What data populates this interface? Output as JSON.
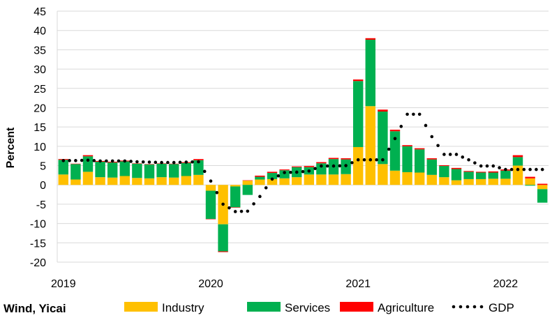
{
  "source_label": "Wind, Yicai",
  "colors": {
    "industry": "#FFC000",
    "services": "#00B050",
    "agriculture": "#FF0000",
    "gdp": "#000000",
    "grid": "#D9D9D9"
  },
  "chart_data": {
    "type": "bar",
    "stacked": true,
    "title": "",
    "xlabel": "",
    "ylabel": "Percent",
    "ylim": [
      -20,
      45
    ],
    "yticks": [
      45,
      40,
      35,
      30,
      25,
      20,
      15,
      10,
      5,
      0,
      -5,
      -10,
      -15,
      -20
    ],
    "x_tick_labels": [
      "2019",
      "2020",
      "2021",
      "2022"
    ],
    "grid": true,
    "legend_position": "bottom",
    "categories": [
      "2019-01",
      "2019-02",
      "2019-03",
      "2019-04",
      "2019-05",
      "2019-06",
      "2019-07",
      "2019-08",
      "2019-09",
      "2019-10",
      "2019-11",
      "2019-12",
      "2020-01",
      "2020-02",
      "2020-03",
      "2020-04",
      "2020-05",
      "2020-06",
      "2020-07",
      "2020-08",
      "2020-09",
      "2020-10",
      "2020-11",
      "2020-12",
      "2021-01",
      "2021-02",
      "2021-03",
      "2021-04",
      "2021-05",
      "2021-06",
      "2021-07",
      "2021-08",
      "2021-09",
      "2021-10",
      "2021-11",
      "2021-12",
      "2022-01",
      "2022-02",
      "2022-03",
      "2022-04"
    ],
    "series": [
      {
        "name": "Industry",
        "kind": "bar",
        "values": [
          2.7,
          1.4,
          3.4,
          2.0,
          1.9,
          2.3,
          1.8,
          1.7,
          2.0,
          1.9,
          2.3,
          2.6,
          -1.5,
          -10.2,
          -0.4,
          1.1,
          1.4,
          1.5,
          1.7,
          2.0,
          2.7,
          2.7,
          2.7,
          2.8,
          9.8,
          20.4,
          5.4,
          3.7,
          3.3,
          3.2,
          2.6,
          2.0,
          1.2,
          1.5,
          1.5,
          1.6,
          1.6,
          5.0,
          1.7,
          -1.1
        ]
      },
      {
        "name": "Services",
        "kind": "bar",
        "values": [
          3.8,
          4.0,
          4.0,
          4.0,
          3.9,
          3.8,
          3.7,
          3.6,
          3.5,
          3.5,
          3.4,
          3.8,
          -7.3,
          -7.0,
          -5.4,
          -2.6,
          0.7,
          1.6,
          2.1,
          2.6,
          1.9,
          2.9,
          4.0,
          3.8,
          17.1,
          17.2,
          13.6,
          10.2,
          6.7,
          6.0,
          4.0,
          2.9,
          2.9,
          1.9,
          1.7,
          1.6,
          2.1,
          2.2,
          -0.2,
          -3.5
        ]
      },
      {
        "name": "Agriculture",
        "kind": "bar",
        "values": [
          0.2,
          0.1,
          0.3,
          0.2,
          0.2,
          0.2,
          0.1,
          0.1,
          0.1,
          0.1,
          0.2,
          0.3,
          -0.1,
          -0.2,
          -0.1,
          0.1,
          0.3,
          0.3,
          0.2,
          0.2,
          0.3,
          0.3,
          0.3,
          0.3,
          0.4,
          0.4,
          0.5,
          0.4,
          0.3,
          0.3,
          0.3,
          0.2,
          0.3,
          0.2,
          0.2,
          0.3,
          0.3,
          0.5,
          0.4,
          0.3
        ]
      },
      {
        "name": "GDP",
        "kind": "dotted-line",
        "values": [
          6.3,
          6.3,
          6.4,
          6.2,
          6.2,
          6.2,
          6.0,
          5.9,
          5.8,
          5.8,
          5.9,
          6.0,
          1.0,
          -5.0,
          -6.9,
          -6.8,
          -3.0,
          1.5,
          3.2,
          3.3,
          3.6,
          4.9,
          4.9,
          5.0,
          6.5,
          6.5,
          6.5,
          12.0,
          18.3,
          18.3,
          12.5,
          7.9,
          7.9,
          6.5,
          4.9,
          4.9,
          4.0,
          4.0,
          4.0,
          4.0
        ]
      }
    ]
  }
}
